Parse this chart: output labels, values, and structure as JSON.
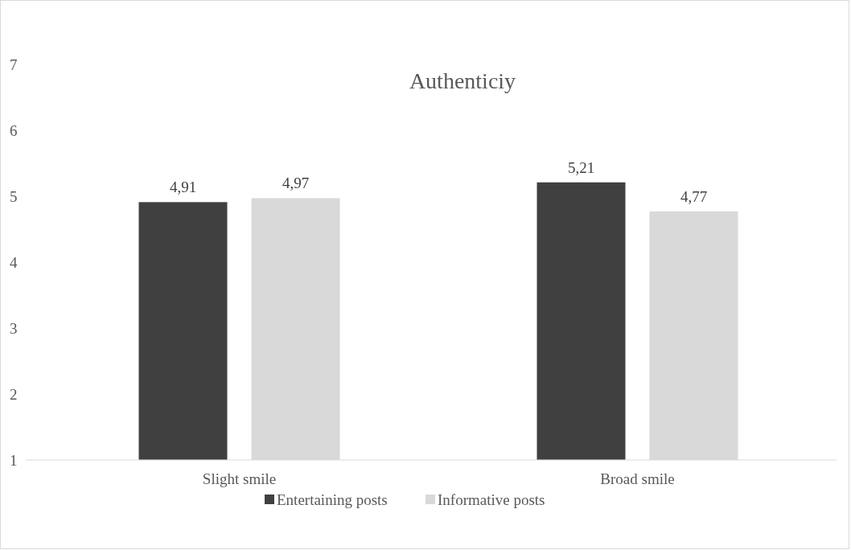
{
  "chart_data": {
    "type": "bar",
    "title": "Authenticiy",
    "categories": [
      "Slight smile",
      "Broad smile"
    ],
    "series": [
      {
        "name": "Entertaining posts",
        "color": "#404040",
        "values": [
          4.91,
          5.21
        ],
        "value_labels": [
          "4,91",
          "5,21"
        ]
      },
      {
        "name": "Informative posts",
        "color": "#d9d9d9",
        "values": [
          4.97,
          4.77
        ],
        "value_labels": [
          "4,97",
          "4,77"
        ]
      }
    ],
    "ylim": [
      1,
      7
    ],
    "yticks": [
      1,
      2,
      3,
      4,
      5,
      6,
      7
    ],
    "grid": false,
    "legend": "bottom"
  }
}
